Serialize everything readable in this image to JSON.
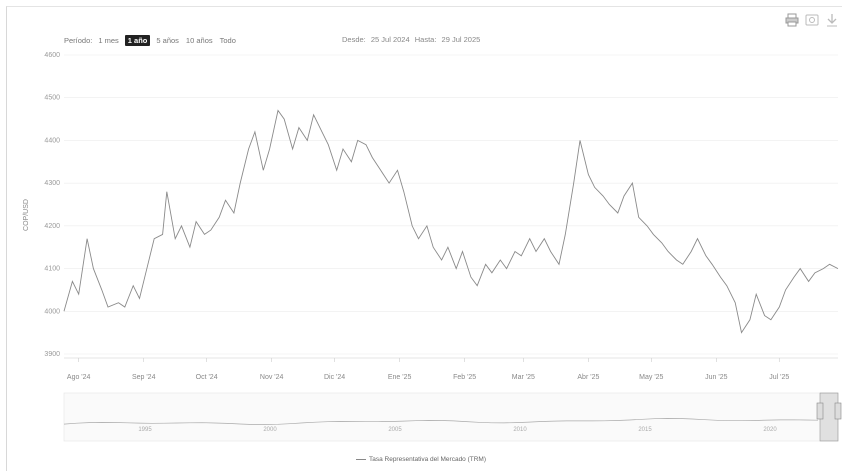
{
  "range_selector": {
    "label": "Período:",
    "buttons": [
      "1 mes",
      "1 año",
      "5 años",
      "10 años",
      "Todo"
    ],
    "active_index": 1
  },
  "date_range": {
    "from_label": "Desde:",
    "from_value": "25 Jul 2024",
    "to_label": "Hasta:",
    "to_value": "29 Jul 2025"
  },
  "exporting": {
    "icons": [
      "print-icon",
      "download-image-icon",
      "download-data-icon"
    ]
  },
  "colors": {
    "line": "#8a8a8a",
    "navigator_line": "#aaaaaa",
    "grid": "#ececec"
  },
  "chart_data": {
    "type": "line",
    "ylabel": "COP/USD",
    "ylim": [
      3900,
      4600
    ],
    "yticks": [
      3900,
      4000,
      4100,
      4200,
      4300,
      4400,
      4500,
      4600
    ],
    "xlim": [
      "2024-07-25",
      "2025-07-29"
    ],
    "xticks": [
      {
        "date": "2024-08-01",
        "label": "Ago '24"
      },
      {
        "date": "2024-09-01",
        "label": "Sep '24"
      },
      {
        "date": "2024-10-01",
        "label": "Oct '24"
      },
      {
        "date": "2024-11-01",
        "label": "Nov '24"
      },
      {
        "date": "2024-12-01",
        "label": "Dic '24"
      },
      {
        "date": "2025-01-01",
        "label": "Ene '25"
      },
      {
        "date": "2025-02-01",
        "label": "Feb '25"
      },
      {
        "date": "2025-03-01",
        "label": "Mar '25"
      },
      {
        "date": "2025-04-01",
        "label": "Abr '25"
      },
      {
        "date": "2025-05-01",
        "label": "May '25"
      },
      {
        "date": "2025-06-01",
        "label": "Jun '25"
      },
      {
        "date": "2025-07-01",
        "label": "Jul '25"
      }
    ],
    "series": [
      {
        "name": "Tasa Representativa del Mercado (TRM)",
        "points": [
          [
            "2024-07-25",
            4000
          ],
          [
            "2024-07-29",
            4070
          ],
          [
            "2024-08-01",
            4040
          ],
          [
            "2024-08-05",
            4170
          ],
          [
            "2024-08-08",
            4100
          ],
          [
            "2024-08-12",
            4050
          ],
          [
            "2024-08-15",
            4010
          ],
          [
            "2024-08-20",
            4020
          ],
          [
            "2024-08-23",
            4010
          ],
          [
            "2024-08-27",
            4060
          ],
          [
            "2024-08-30",
            4030
          ],
          [
            "2024-09-03",
            4110
          ],
          [
            "2024-09-06",
            4170
          ],
          [
            "2024-09-10",
            4180
          ],
          [
            "2024-09-12",
            4280
          ],
          [
            "2024-09-16",
            4170
          ],
          [
            "2024-09-19",
            4200
          ],
          [
            "2024-09-23",
            4150
          ],
          [
            "2024-09-26",
            4210
          ],
          [
            "2024-09-30",
            4180
          ],
          [
            "2024-10-03",
            4190
          ],
          [
            "2024-10-07",
            4220
          ],
          [
            "2024-10-10",
            4260
          ],
          [
            "2024-10-14",
            4230
          ],
          [
            "2024-10-17",
            4300
          ],
          [
            "2024-10-21",
            4380
          ],
          [
            "2024-10-24",
            4420
          ],
          [
            "2024-10-28",
            4330
          ],
          [
            "2024-10-31",
            4380
          ],
          [
            "2024-11-04",
            4470
          ],
          [
            "2024-11-07",
            4450
          ],
          [
            "2024-11-11",
            4380
          ],
          [
            "2024-11-14",
            4430
          ],
          [
            "2024-11-18",
            4400
          ],
          [
            "2024-11-21",
            4460
          ],
          [
            "2024-11-25",
            4420
          ],
          [
            "2024-11-28",
            4390
          ],
          [
            "2024-12-02",
            4330
          ],
          [
            "2024-12-05",
            4380
          ],
          [
            "2024-12-09",
            4350
          ],
          [
            "2024-12-12",
            4400
          ],
          [
            "2024-12-16",
            4390
          ],
          [
            "2024-12-19",
            4360
          ],
          [
            "2024-12-23",
            4330
          ],
          [
            "2024-12-27",
            4300
          ],
          [
            "2024-12-31",
            4330
          ],
          [
            "2025-01-03",
            4280
          ],
          [
            "2025-01-07",
            4200
          ],
          [
            "2025-01-10",
            4170
          ],
          [
            "2025-01-14",
            4200
          ],
          [
            "2025-01-17",
            4150
          ],
          [
            "2025-01-21",
            4120
          ],
          [
            "2025-01-24",
            4150
          ],
          [
            "2025-01-28",
            4100
          ],
          [
            "2025-01-31",
            4140
          ],
          [
            "2025-02-04",
            4080
          ],
          [
            "2025-02-07",
            4060
          ],
          [
            "2025-02-11",
            4110
          ],
          [
            "2025-02-14",
            4090
          ],
          [
            "2025-02-18",
            4120
          ],
          [
            "2025-02-21",
            4100
          ],
          [
            "2025-02-25",
            4140
          ],
          [
            "2025-02-28",
            4130
          ],
          [
            "2025-03-04",
            4170
          ],
          [
            "2025-03-07",
            4140
          ],
          [
            "2025-03-11",
            4170
          ],
          [
            "2025-03-14",
            4140
          ],
          [
            "2025-03-18",
            4110
          ],
          [
            "2025-03-21",
            4180
          ],
          [
            "2025-03-25",
            4300
          ],
          [
            "2025-03-28",
            4400
          ],
          [
            "2025-04-01",
            4320
          ],
          [
            "2025-04-04",
            4290
          ],
          [
            "2025-04-08",
            4270
          ],
          [
            "2025-04-11",
            4250
          ],
          [
            "2025-04-15",
            4230
          ],
          [
            "2025-04-18",
            4270
          ],
          [
            "2025-04-22",
            4300
          ],
          [
            "2025-04-25",
            4220
          ],
          [
            "2025-04-29",
            4200
          ],
          [
            "2025-05-02",
            4180
          ],
          [
            "2025-05-06",
            4160
          ],
          [
            "2025-05-09",
            4140
          ],
          [
            "2025-05-13",
            4120
          ],
          [
            "2025-05-16",
            4110
          ],
          [
            "2025-05-20",
            4140
          ],
          [
            "2025-05-23",
            4170
          ],
          [
            "2025-05-27",
            4130
          ],
          [
            "2025-05-30",
            4110
          ],
          [
            "2025-06-03",
            4080
          ],
          [
            "2025-06-06",
            4060
          ],
          [
            "2025-06-10",
            4020
          ],
          [
            "2025-06-13",
            3950
          ],
          [
            "2025-06-17",
            3980
          ],
          [
            "2025-06-20",
            4040
          ],
          [
            "2025-06-24",
            3990
          ],
          [
            "2025-06-27",
            3980
          ],
          [
            "2025-07-01",
            4010
          ],
          [
            "2025-07-04",
            4050
          ],
          [
            "2025-07-08",
            4080
          ],
          [
            "2025-07-11",
            4100
          ],
          [
            "2025-07-15",
            4070
          ],
          [
            "2025-07-18",
            4090
          ],
          [
            "2025-07-22",
            4100
          ],
          [
            "2025-07-25",
            4110
          ],
          [
            "2025-07-29",
            4100
          ]
        ]
      }
    ],
    "navigator": {
      "labels": [
        "1995",
        "2000",
        "2005",
        "2010",
        "2015",
        "2020"
      ]
    },
    "legend": [
      "Tasa Representativa del Mercado (TRM)"
    ]
  }
}
